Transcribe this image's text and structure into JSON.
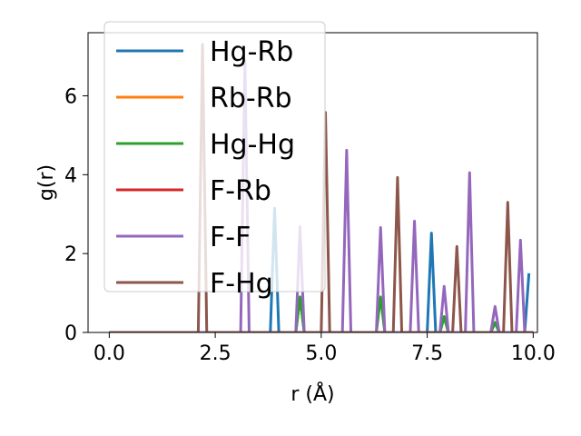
{
  "chart_data": {
    "type": "line",
    "title": "",
    "xlabel": "r (Å)",
    "ylabel": "g(r)",
    "xlim": [
      -0.5,
      10.1
    ],
    "ylim": [
      0,
      7.6
    ],
    "xticks": [
      0.0,
      2.5,
      5.0,
      7.5,
      10.0
    ],
    "xtick_labels": [
      "0.0",
      "2.5",
      "5.0",
      "7.5",
      "10.0"
    ],
    "yticks": [
      0,
      2,
      4,
      6
    ],
    "ytick_labels": [
      "0",
      "2",
      "4",
      "6"
    ],
    "grid": false,
    "legend_position": "top-left",
    "series": [
      {
        "name": "Hg-Rb",
        "color": "#1f77b4",
        "x": [
          0,
          3.7,
          3.8,
          3.9,
          4.0,
          4.1,
          4.4,
          4.5,
          4.6,
          4.7,
          7.4,
          7.5,
          7.6,
          7.7,
          7.8,
          7.9,
          8.0,
          8.1,
          9.0,
          9.1,
          9.2,
          9.3,
          9.7,
          9.8,
          9.9
        ],
        "y": [
          0,
          0,
          0,
          3.15,
          0,
          0,
          0,
          0.9,
          0,
          0,
          0,
          0,
          2.52,
          0,
          0,
          0.4,
          0,
          0,
          0,
          0.25,
          0,
          0,
          0,
          0,
          1.5
        ]
      },
      {
        "name": "Rb-Rb",
        "color": "#ff7f0e",
        "x": [
          0,
          10.0
        ],
        "y": [
          0,
          0
        ]
      },
      {
        "name": "Hg-Hg",
        "color": "#2ca02c",
        "x": [
          0,
          4.4,
          4.5,
          4.6,
          6.3,
          6.4,
          6.5,
          7.8,
          7.9,
          8.0,
          9.0,
          9.1,
          9.2,
          10.0
        ],
        "y": [
          0,
          0,
          0.9,
          0,
          0,
          0.9,
          0,
          0,
          0.4,
          0,
          0,
          0.25,
          0,
          0
        ]
      },
      {
        "name": "F-Rb",
        "color": "#d62728",
        "x": [
          0,
          10.0
        ],
        "y": [
          0,
          0
        ]
      },
      {
        "name": "F-F",
        "color": "#9467bd",
        "x": [
          0,
          3.1,
          3.2,
          3.3,
          4.4,
          4.5,
          4.6,
          5.5,
          5.6,
          5.7,
          6.3,
          6.4,
          6.5,
          7.1,
          7.2,
          7.3,
          7.8,
          7.9,
          8.0,
          8.4,
          8.5,
          8.6,
          9.0,
          9.1,
          9.2,
          9.6,
          9.7,
          9.8,
          10.0
        ],
        "y": [
          0,
          0,
          6.9,
          0,
          0,
          2.68,
          0,
          0,
          4.62,
          0,
          0,
          2.66,
          0,
          0,
          2.82,
          0,
          0,
          1.17,
          0,
          0,
          4.05,
          0,
          0,
          0.66,
          0,
          0,
          2.34,
          0,
          0
        ]
      },
      {
        "name": "F-Hg",
        "color": "#8c564b",
        "x": [
          0,
          2.1,
          2.2,
          2.3,
          5.0,
          5.1,
          5.2,
          6.7,
          6.8,
          6.9,
          8.1,
          8.2,
          8.3,
          9.3,
          9.4,
          9.5,
          10.0
        ],
        "y": [
          0,
          0,
          7.3,
          0,
          0,
          5.58,
          0,
          0,
          3.93,
          0,
          0,
          2.18,
          0,
          0,
          3.3,
          0,
          0
        ]
      }
    ]
  }
}
